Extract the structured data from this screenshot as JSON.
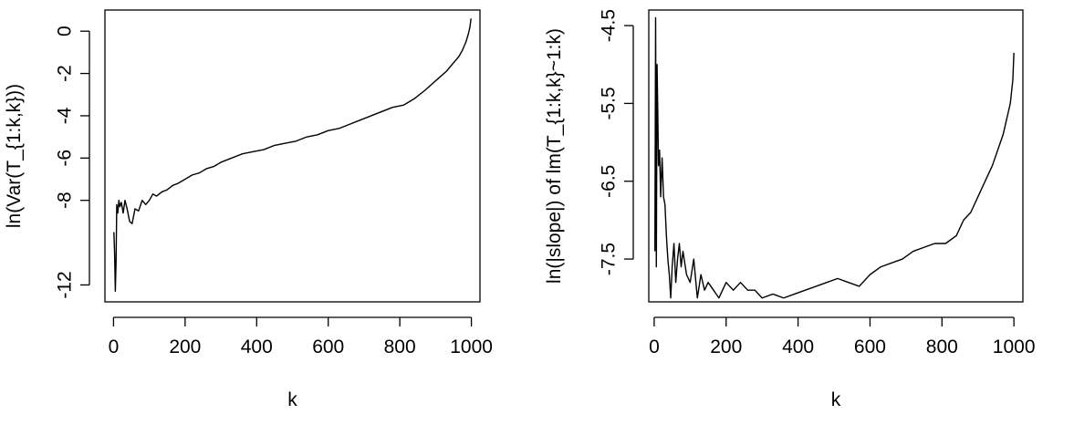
{
  "chart_data": [
    {
      "type": "line",
      "title": "",
      "xlabel": "k",
      "ylabel": "ln(Var(T_{1:k,k}))",
      "xlim": [
        -24,
        1024
      ],
      "ylim": [
        -12.8,
        1.0
      ],
      "xticks": [
        0,
        200,
        400,
        600,
        800,
        1000
      ],
      "xtick_labels": [
        "0",
        "200",
        "400",
        "600",
        "800",
        "1000"
      ],
      "yticks": [
        -12,
        -8,
        -6,
        -4,
        -2,
        0
      ],
      "ytick_labels": [
        "-12",
        "-8",
        "-6",
        "-4",
        "-2",
        "0"
      ],
      "grid": false,
      "series": [
        {
          "x": [
            1,
            3,
            5,
            7,
            9,
            12,
            15,
            18,
            22,
            27,
            32,
            38,
            45,
            52,
            60,
            70,
            80,
            90,
            100,
            110,
            120,
            135,
            150,
            165,
            180,
            200,
            220,
            240,
            260,
            280,
            300,
            330,
            360,
            390,
            420,
            450,
            480,
            510,
            540,
            570,
            600,
            630,
            660,
            690,
            720,
            750,
            780,
            810,
            840,
            870,
            890,
            910,
            930,
            950,
            965,
            975,
            985,
            992,
            996,
            999
          ],
          "y": [
            -9.5,
            -10.5,
            -12.3,
            -11.0,
            -8.2,
            -8.6,
            -8.0,
            -8.3,
            -8.1,
            -8.6,
            -8.0,
            -8.4,
            -9.0,
            -9.1,
            -8.4,
            -8.5,
            -8.0,
            -8.2,
            -8.0,
            -7.7,
            -7.8,
            -7.6,
            -7.5,
            -7.3,
            -7.2,
            -7.0,
            -6.8,
            -6.7,
            -6.5,
            -6.4,
            -6.2,
            -6.0,
            -5.8,
            -5.7,
            -5.6,
            -5.4,
            -5.3,
            -5.2,
            -5.0,
            -4.9,
            -4.7,
            -4.6,
            -4.4,
            -4.2,
            -4.0,
            -3.8,
            -3.6,
            -3.5,
            -3.2,
            -2.8,
            -2.5,
            -2.2,
            -1.9,
            -1.5,
            -1.2,
            -0.9,
            -0.5,
            -0.1,
            0.2,
            0.6
          ]
        }
      ]
    },
    {
      "type": "line",
      "title": "",
      "xlabel": "k",
      "ylabel": "ln(|slope|) of lm(T_{1:k,k}~1:k)",
      "xlim": [
        -15,
        1025
      ],
      "ylim": [
        -8.05,
        -4.3
      ],
      "xticks": [
        0,
        200,
        400,
        600,
        800,
        1000
      ],
      "xtick_labels": [
        "0",
        "200",
        "400",
        "600",
        "800",
        "1000"
      ],
      "yticks": [
        -7.5,
        -6.5,
        -5.5,
        -4.5
      ],
      "ytick_labels": [
        "-7.5",
        "-6.5",
        "-5.5",
        "-4.5"
      ],
      "grid": false,
      "series": [
        {
          "x": [
            2,
            4,
            6,
            8,
            10,
            12,
            15,
            18,
            22,
            26,
            30,
            34,
            38,
            42,
            46,
            50,
            55,
            60,
            65,
            70,
            75,
            80,
            90,
            100,
            110,
            120,
            130,
            140,
            150,
            165,
            180,
            200,
            220,
            240,
            260,
            280,
            300,
            330,
            360,
            390,
            420,
            450,
            480,
            510,
            540,
            570,
            600,
            630,
            660,
            690,
            720,
            750,
            780,
            810,
            840,
            860,
            880,
            900,
            920,
            940,
            955,
            970,
            980,
            990,
            997,
            1000
          ],
          "y": [
            -7.4,
            -4.4,
            -7.6,
            -5.0,
            -5.6,
            -6.3,
            -6.1,
            -6.7,
            -6.2,
            -6.7,
            -6.8,
            -7.2,
            -7.5,
            -7.7,
            -8.0,
            -7.6,
            -7.3,
            -7.8,
            -7.5,
            -7.3,
            -7.6,
            -7.4,
            -7.7,
            -7.8,
            -7.5,
            -8.0,
            -7.7,
            -7.9,
            -7.8,
            -7.9,
            -8.0,
            -7.8,
            -7.9,
            -7.8,
            -7.9,
            -7.9,
            -8.0,
            -7.95,
            -8.0,
            -7.95,
            -7.9,
            -7.85,
            -7.8,
            -7.75,
            -7.8,
            -7.85,
            -7.7,
            -7.6,
            -7.55,
            -7.5,
            -7.4,
            -7.35,
            -7.3,
            -7.3,
            -7.2,
            -7.0,
            -6.9,
            -6.7,
            -6.5,
            -6.3,
            -6.1,
            -5.9,
            -5.7,
            -5.5,
            -5.2,
            -4.85
          ]
        }
      ]
    }
  ]
}
